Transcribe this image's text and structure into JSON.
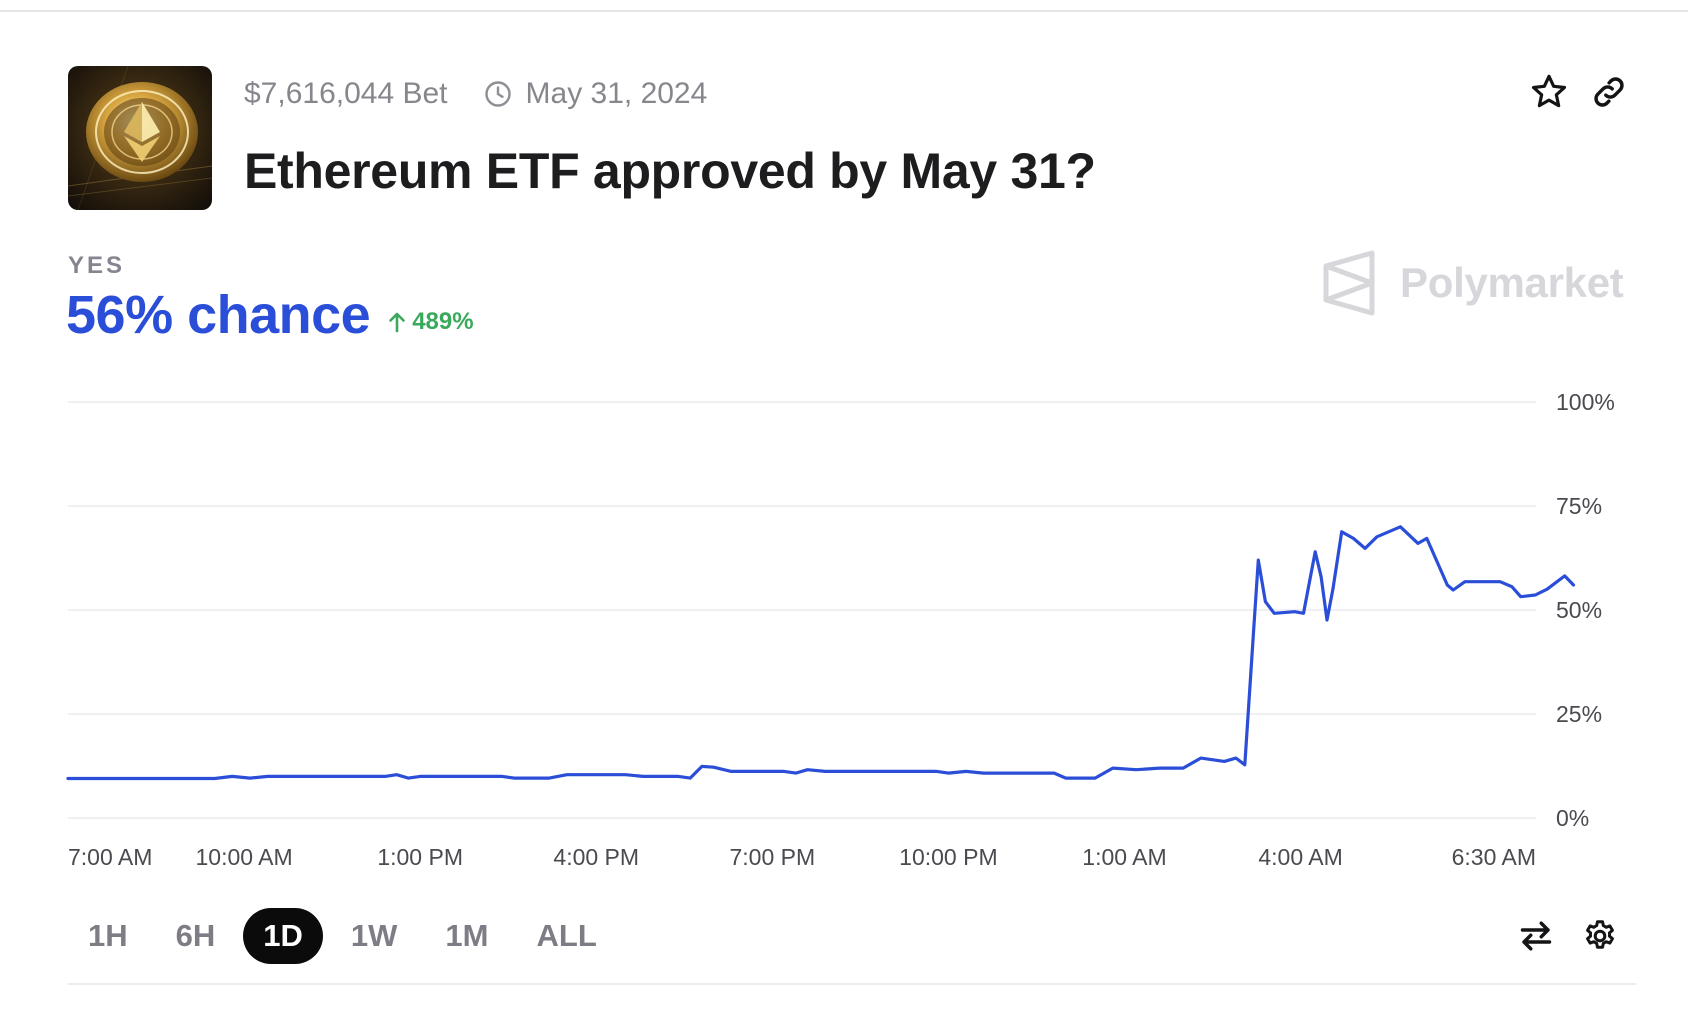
{
  "market": {
    "volume": "$7,616,044 Bet",
    "end_date": "May 31, 2024",
    "title": "Ethereum ETF approved by May 31?",
    "outcome_label": "YES",
    "chance": "56% chance",
    "change": "489%",
    "change_direction": "up",
    "brand": "Polymarket"
  },
  "icons": {
    "clock": "clock-icon",
    "favorite": "star-icon",
    "share": "link-icon",
    "swap": "swap-arrows-icon",
    "settings": "gear-icon",
    "brand_logo": "polymarket-logo-icon",
    "thumbnail": "ethereum-coin-image"
  },
  "colors": {
    "accent_blue": "#2b4ed8",
    "up_green": "#3aa95c",
    "muted_text": "#86868d",
    "active_range_bg": "#0b0b0c"
  },
  "time_ranges": [
    {
      "label": "1H",
      "active": false
    },
    {
      "label": "6H",
      "active": false
    },
    {
      "label": "1D",
      "active": true
    },
    {
      "label": "1W",
      "active": false
    },
    {
      "label": "1M",
      "active": false
    },
    {
      "label": "ALL",
      "active": false
    }
  ],
  "chart_data": {
    "type": "line",
    "title": "",
    "xlabel": "",
    "ylabel": "",
    "ylim": [
      0,
      100
    ],
    "y_ticks": [
      "100%",
      "75%",
      "50%",
      "25%",
      "0%"
    ],
    "y_tick_values": [
      100,
      75,
      50,
      25,
      0
    ],
    "x_ticks": [
      "7:00 AM",
      "10:00 AM",
      "1:00 PM",
      "4:00 PM",
      "7:00 PM",
      "10:00 PM",
      "1:00 AM",
      "4:00 AM",
      "6:30 AM"
    ],
    "x_tick_hours": [
      0,
      3,
      6,
      9,
      12,
      15,
      18,
      21,
      23.5
    ],
    "xlim_hours": [
      0,
      24
    ],
    "x_unit": "hours since 7:00 AM",
    "grid": true,
    "line_color": "#2b4ed8",
    "series": [
      {
        "name": "YES",
        "points": [
          [
            0.0,
            9.5
          ],
          [
            2.5,
            9.5
          ],
          [
            2.8,
            10.0
          ],
          [
            3.1,
            9.6
          ],
          [
            3.4,
            10.0
          ],
          [
            5.4,
            10.0
          ],
          [
            5.6,
            10.4
          ],
          [
            5.8,
            9.6
          ],
          [
            6.0,
            10.0
          ],
          [
            7.4,
            10.0
          ],
          [
            7.6,
            9.6
          ],
          [
            8.2,
            9.6
          ],
          [
            8.5,
            10.4
          ],
          [
            9.5,
            10.4
          ],
          [
            9.8,
            10.0
          ],
          [
            10.4,
            10.0
          ],
          [
            10.6,
            9.6
          ],
          [
            10.8,
            12.4
          ],
          [
            11.0,
            12.2
          ],
          [
            11.3,
            11.2
          ],
          [
            12.2,
            11.2
          ],
          [
            12.4,
            10.8
          ],
          [
            12.6,
            11.6
          ],
          [
            12.9,
            11.2
          ],
          [
            14.8,
            11.2
          ],
          [
            15.0,
            10.8
          ],
          [
            15.3,
            11.2
          ],
          [
            15.6,
            10.8
          ],
          [
            16.8,
            10.8
          ],
          [
            17.0,
            9.6
          ],
          [
            17.5,
            9.6
          ],
          [
            17.8,
            12.0
          ],
          [
            18.2,
            11.6
          ],
          [
            18.6,
            12.0
          ],
          [
            19.0,
            12.0
          ],
          [
            19.3,
            14.4
          ],
          [
            19.7,
            13.6
          ],
          [
            19.9,
            14.4
          ],
          [
            20.05,
            12.8
          ],
          [
            20.2,
            45.0
          ],
          [
            20.28,
            62.0
          ],
          [
            20.4,
            52.0
          ],
          [
            20.55,
            49.2
          ],
          [
            20.9,
            49.6
          ],
          [
            21.05,
            49.2
          ],
          [
            21.25,
            64.0
          ],
          [
            21.35,
            58.0
          ],
          [
            21.45,
            47.6
          ],
          [
            21.55,
            55.0
          ],
          [
            21.7,
            68.8
          ],
          [
            21.9,
            67.2
          ],
          [
            22.1,
            64.8
          ],
          [
            22.3,
            67.6
          ],
          [
            22.7,
            70.0
          ],
          [
            23.0,
            66.0
          ],
          [
            23.15,
            67.2
          ],
          [
            23.5,
            56.0
          ],
          [
            23.6,
            54.8
          ],
          [
            23.8,
            56.8
          ],
          [
            24.4,
            56.8
          ],
          [
            24.6,
            55.6
          ],
          [
            24.75,
            53.2
          ],
          [
            25.0,
            53.6
          ],
          [
            25.2,
            55.0
          ],
          [
            25.5,
            58.2
          ],
          [
            25.65,
            56.0
          ]
        ]
      }
    ]
  }
}
